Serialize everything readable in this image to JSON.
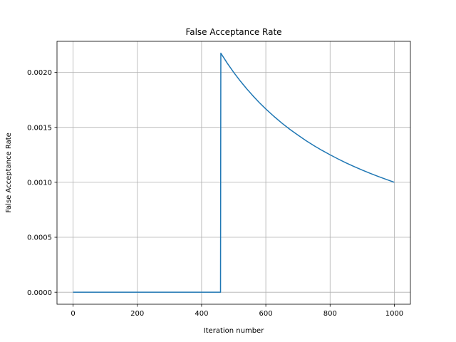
{
  "chart_data": {
    "type": "line",
    "title": "False Acceptance Rate",
    "xlabel": "Iteration number",
    "ylabel": "False Acceptance Rate",
    "xlim": [
      -50,
      1050
    ],
    "ylim": [
      -0.000109,
      0.002282
    ],
    "x_ticks": [
      0,
      200,
      400,
      600,
      800,
      1000
    ],
    "x_tick_labels": [
      "0",
      "200",
      "400",
      "600",
      "800",
      "1000"
    ],
    "y_ticks": [
      0,
      0.0005,
      0.001,
      0.0015,
      0.002
    ],
    "y_tick_labels": [
      "0.0000",
      "0.0005",
      "0.0010",
      "0.0015",
      "0.0020"
    ],
    "grid": true,
    "series": [
      {
        "color": "#1f77b4",
        "x": [
          0,
          459,
          460,
          480,
          500,
          520,
          540,
          560,
          580,
          600,
          625,
          650,
          675,
          700,
          725,
          750,
          775,
          800,
          825,
          850,
          875,
          900,
          925,
          950,
          975,
          1000
        ],
        "y": [
          0,
          0,
          0.002174,
          0.002083,
          0.002,
          0.001923,
          0.001852,
          0.001786,
          0.001724,
          0.001667,
          0.0016,
          0.001538,
          0.001481,
          0.001429,
          0.001379,
          0.001333,
          0.00129,
          0.00125,
          0.001212,
          0.001176,
          0.001143,
          0.001111,
          0.001081,
          0.001053,
          0.001026,
          0.001
        ]
      }
    ]
  },
  "colors": {
    "line": "#1f77b4",
    "grid": "#b0b0b0",
    "axes": "#000000"
  }
}
